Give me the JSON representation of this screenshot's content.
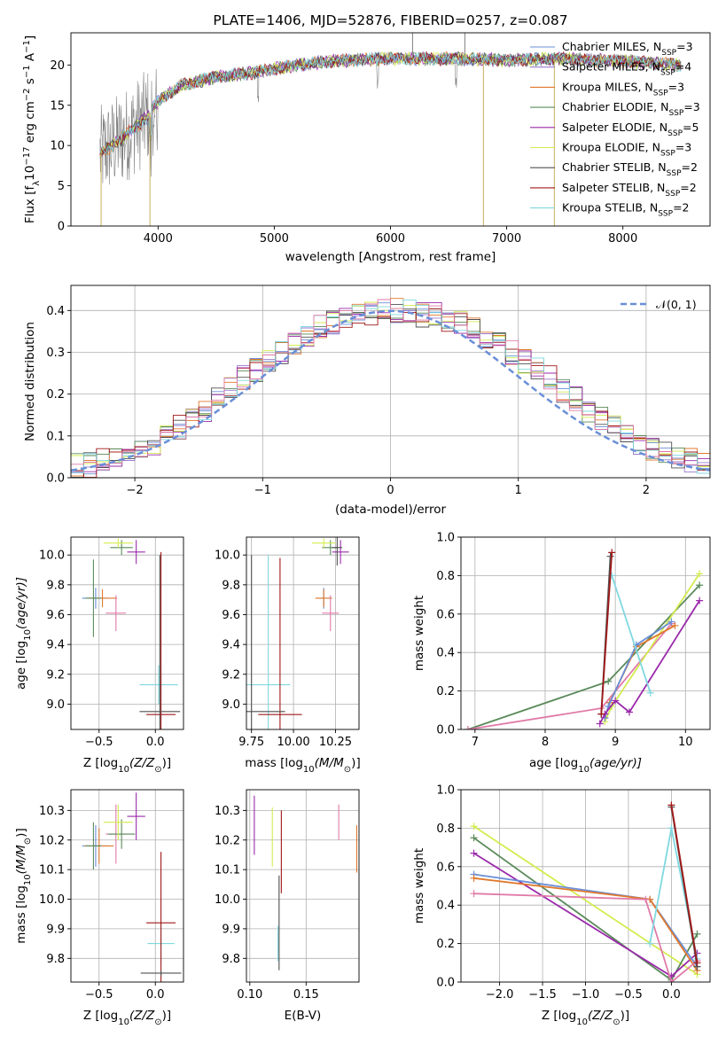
{
  "figure": {
    "title": "PLATE=1406, MJD=52876, FIBERID=0257, z=0.087"
  },
  "colors": {
    "Chabrier MILES": "#6a8fd8",
    "Salpeter MILES": "#9a7bd0",
    "Kroupa MILES": "#e0782c",
    "Chabrier ELODIE": "#5a8a5a",
    "Salpeter ELODIE": "#9a2aaa",
    "Kroupa ELODIE": "#d4ec50",
    "Chabrier STELIB": "#505050",
    "Salpeter STELIB": "#a01818",
    "Kroupa STELIB": "#80d8e0",
    "Salpeter ELODIE pink": "#e07aa8",
    "data": "#808080"
  },
  "chart_data": [
    {
      "id": "spectrum",
      "type": "line",
      "title": "PLATE=1406, MJD=52876, FIBERID=0257, z=0.087",
      "xlabel": "wavelength [Angstrom, rest frame]",
      "ylabel": "Flux [f",
      "ylabel_parts": {
        "lambda": "λ",
        "mult": "10",
        "exp1": "−17",
        "unit": " erg cm",
        "exp2": "−2",
        "s": " s",
        "exp3": "−1",
        "A": " A",
        "exp4": "−1",
        "close": "]"
      },
      "xlim": [
        3250,
        8750
      ],
      "ylim": [
        0,
        24
      ],
      "xticks": [
        4000,
        5000,
        6000,
        7000,
        8000
      ],
      "yticks": [
        0,
        5,
        10,
        15,
        20
      ],
      "grid": false,
      "legend_position": "top-right",
      "legend": [
        {
          "name": "Chabrier MILES, N",
          "sub": "SSP",
          "val": "=3",
          "color": "#6a8fd8"
        },
        {
          "name": "Salpeter MILES, N",
          "sub": "SSP",
          "val": "=4",
          "color": "#9a7bd0"
        },
        {
          "name": "Kroupa MILES, N",
          "sub": "SSP",
          "val": "=3",
          "color": "#e0782c"
        },
        {
          "name": "Chabrier ELODIE, N",
          "sub": "SSP",
          "val": "=3",
          "color": "#5a8a5a"
        },
        {
          "name": "Salpeter ELODIE, N",
          "sub": "SSP",
          "val": "=5",
          "color": "#9a2aaa"
        },
        {
          "name": "Kroupa ELODIE, N",
          "sub": "SSP",
          "val": "=3",
          "color": "#d4ec50"
        },
        {
          "name": "Chabrier STELIB, N",
          "sub": "SSP",
          "val": "=2",
          "color": "#505050"
        },
        {
          "name": "Salpeter STELIB, N",
          "sub": "SSP",
          "val": "=2",
          "color": "#a01818"
        },
        {
          "name": "Kroupa STELIB, N",
          "sub": "SSP",
          "val": "=2",
          "color": "#80d8e0"
        }
      ],
      "continuum": [
        [
          3500,
          9.0
        ],
        [
          3700,
          11.0
        ],
        [
          3900,
          13.5
        ],
        [
          4000,
          15.5
        ],
        [
          4200,
          17.5
        ],
        [
          4500,
          18.5
        ],
        [
          4800,
          19.0
        ],
        [
          5000,
          19.5
        ],
        [
          5200,
          20.0
        ],
        [
          5500,
          20.5
        ],
        [
          6000,
          20.8
        ],
        [
          6500,
          20.8
        ],
        [
          7000,
          20.6
        ],
        [
          7500,
          20.8
        ],
        [
          8000,
          20.5
        ],
        [
          8500,
          20.0
        ]
      ],
      "spikes": [
        [
          3510,
          0
        ],
        [
          3930,
          0
        ],
        [
          6800,
          0
        ],
        [
          7410,
          0
        ],
        [
          6190,
          24
        ],
        [
          6640,
          24
        ]
      ]
    },
    {
      "id": "residuals",
      "type": "area",
      "xlabel": "(data-model)/error",
      "ylabel": "Normed distribution",
      "xlim": [
        -2.5,
        2.5
      ],
      "ylim": [
        0,
        0.46
      ],
      "xticks": [
        -2,
        -1,
        0,
        1,
        2
      ],
      "xtick_labels": [
        "−2",
        "−1",
        "0",
        "1",
        "2"
      ],
      "yticks": [
        0.0,
        0.1,
        0.2,
        0.3,
        0.4
      ],
      "ytick_labels": [
        "0.0",
        "0.1",
        "0.2",
        "0.3",
        "0.4"
      ],
      "grid": true,
      "legend_position": "top-right",
      "legend": [
        {
          "name": "𝒩(0, 1)",
          "color": "#6a8fd8",
          "dashed": true
        }
      ],
      "bin_width": 0.1,
      "x_start": -2.5,
      "base_values": [
        0.03,
        0.03,
        0.04,
        0.05,
        0.06,
        0.07,
        0.08,
        0.1,
        0.12,
        0.14,
        0.16,
        0.19,
        0.21,
        0.24,
        0.26,
        0.28,
        0.3,
        0.32,
        0.34,
        0.36,
        0.37,
        0.38,
        0.39,
        0.39,
        0.4,
        0.4,
        0.4,
        0.39,
        0.39,
        0.38,
        0.37,
        0.36,
        0.34,
        0.32,
        0.3,
        0.28,
        0.26,
        0.24,
        0.21,
        0.19,
        0.16,
        0.14,
        0.12,
        0.1,
        0.08,
        0.07,
        0.06,
        0.05,
        0.04,
        0.03
      ]
    },
    {
      "id": "z-age",
      "type": "scatter",
      "xlabel": "Z [log",
      "xlabel_parts": {
        "sub": "10",
        "rest": "(Z/Z",
        "sun": "⊙",
        "close": ")]"
      },
      "ylabel": "age  [log",
      "ylabel_parts": {
        "sub": "10",
        "rest": "(age/yr)]"
      },
      "xlim": [
        -0.75,
        0.25
      ],
      "ylim": [
        8.83,
        10.12
      ],
      "xticks": [
        -0.5,
        0.0
      ],
      "xtick_labels": [
        "−0.5",
        "0.0"
      ],
      "yticks": [
        9.0,
        9.2,
        9.4,
        9.6,
        9.8,
        10.0
      ],
      "ytick_labels": [
        "9.0",
        "9.2",
        "9.4",
        "9.6",
        "9.8",
        "10.0"
      ],
      "grid": true,
      "points": [
        {
          "x": -0.53,
          "y": 9.71,
          "xe": 0.12,
          "ye": 0.07,
          "c": "#6a8fd8"
        },
        {
          "x": -0.47,
          "y": 9.71,
          "xe": 0.13,
          "ye": 0.06,
          "c": "#e0782c"
        },
        {
          "x": -0.55,
          "y": 9.71,
          "xe": 0.07,
          "ye": 0.26,
          "c": "#5a8a5a"
        },
        {
          "x": -0.35,
          "y": 9.61,
          "xe": 0.09,
          "ye": 0.12,
          "c": "#e07aa8"
        },
        {
          "x": -0.3,
          "y": 10.05,
          "xe": 0.1,
          "ye": 0.05,
          "c": "#5a8a5a"
        },
        {
          "x": -0.33,
          "y": 10.08,
          "xe": 0.13,
          "ye": 0.03,
          "c": "#d4ec50"
        },
        {
          "x": -0.17,
          "y": 10.02,
          "xe": 0.08,
          "ye": 0.08,
          "c": "#9a2aaa"
        },
        {
          "x": 0.03,
          "y": 9.13,
          "xe": 0.17,
          "ye": 0.13,
          "c": "#80d8e0"
        },
        {
          "x": 0.05,
          "y": 8.93,
          "xe": 0.13,
          "ye": 1.09,
          "c": "#a01818"
        },
        {
          "x": 0.04,
          "y": 8.95,
          "xe": 0.18,
          "ye": 1.05,
          "c": "#505050"
        }
      ]
    },
    {
      "id": "mass-age",
      "type": "scatter",
      "xlabel": "mass [log",
      "xlabel_parts": {
        "sub": "10",
        "rest": "(M/M",
        "sun": "⊙",
        "close": ")]"
      },
      "xlim": [
        9.72,
        10.39
      ],
      "ylim": [
        8.83,
        10.12
      ],
      "xticks": [
        9.75,
        10.0,
        10.25
      ],
      "xtick_labels": [
        "9.75",
        "10.00",
        "10.25"
      ],
      "yticks": [
        9.0,
        9.2,
        9.4,
        9.6,
        9.8,
        10.0
      ],
      "ytick_labels": [
        "9.0",
        "9.2",
        "9.4",
        "9.6",
        "9.8",
        "10.0"
      ],
      "grid": true,
      "points": [
        {
          "x": 10.18,
          "y": 9.71,
          "xe": 0.04,
          "ye": 0.07,
          "c": "#6a8fd8"
        },
        {
          "x": 10.18,
          "y": 9.71,
          "xe": 0.05,
          "ye": 0.06,
          "c": "#e0782c"
        },
        {
          "x": 10.22,
          "y": 9.61,
          "xe": 0.05,
          "ye": 0.12,
          "c": "#e07aa8"
        },
        {
          "x": 10.22,
          "y": 10.05,
          "xe": 0.05,
          "ye": 0.05,
          "c": "#5a8a5a"
        },
        {
          "x": 10.18,
          "y": 10.08,
          "xe": 0.07,
          "ye": 0.03,
          "c": "#d4ec50"
        },
        {
          "x": 10.28,
          "y": 10.02,
          "xe": 0.05,
          "ye": 0.08,
          "c": "#9a2aaa"
        },
        {
          "x": 10.26,
          "y": 10.05,
          "xe": 0.03,
          "ye": 0.12,
          "c": "#505050"
        },
        {
          "x": 9.85,
          "y": 9.13,
          "xe": 0.13,
          "ye": 0.87,
          "c": "#80d8e0"
        },
        {
          "x": 9.92,
          "y": 8.93,
          "xe": 0.13,
          "ye": 1.05,
          "c": "#a01818"
        },
        {
          "x": 9.75,
          "y": 8.95,
          "xe": 0.2,
          "ye": 1.05,
          "c": "#505050"
        }
      ]
    },
    {
      "id": "age-weight",
      "type": "line",
      "xlabel": "age  [log",
      "xlabel_parts": {
        "sub": "10",
        "rest": "(age/yr)]"
      },
      "ylabel": "mass weight",
      "xlim": [
        6.8,
        10.35
      ],
      "ylim": [
        0,
        1.0
      ],
      "xticks": [
        7,
        8,
        9,
        10
      ],
      "xtick_labels": [
        "7",
        "8",
        "9",
        "10"
      ],
      "yticks": [
        0.0,
        0.2,
        0.4,
        0.6,
        0.8,
        1.0
      ],
      "ytick_labels": [
        "0.0",
        "0.2",
        "0.4",
        "0.6",
        "0.8",
        "1.0"
      ],
      "grid": true,
      "series": [
        {
          "c": "#5a8a5a",
          "x": [
            6.9,
            8.9,
            10.2
          ],
          "y": [
            0.0,
            0.25,
            0.75
          ]
        },
        {
          "c": "#e07aa8",
          "x": [
            6.9,
            8.8,
            9.8
          ],
          "y": [
            0.0,
            0.11,
            0.55
          ]
        },
        {
          "c": "#d4ec50",
          "x": [
            8.85,
            8.95,
            10.2
          ],
          "y": [
            0.04,
            0.12,
            0.81
          ]
        },
        {
          "c": "#e0782c",
          "x": [
            8.85,
            8.92,
            9.3,
            9.85
          ],
          "y": [
            0.06,
            0.14,
            0.43,
            0.54
          ]
        },
        {
          "c": "#6a8fd8",
          "x": [
            8.85,
            8.9,
            9.3,
            9.8
          ],
          "y": [
            0.06,
            0.12,
            0.44,
            0.56
          ]
        },
        {
          "c": "#9a2aaa",
          "x": [
            8.78,
            8.85,
            9.0,
            9.2,
            10.2
          ],
          "y": [
            0.03,
            0.08,
            0.15,
            0.09,
            0.67
          ]
        },
        {
          "c": "#80d8e0",
          "x": [
            8.95,
            9.5
          ],
          "y": [
            0.8,
            0.19
          ]
        },
        {
          "c": "#505050",
          "x": [
            8.8,
            8.93
          ],
          "y": [
            0.08,
            0.9
          ]
        },
        {
          "c": "#a01818",
          "x": [
            8.8,
            8.95
          ],
          "y": [
            0.08,
            0.92
          ]
        }
      ]
    },
    {
      "id": "z-mass",
      "type": "scatter",
      "xlabel": "Z [log",
      "xlabel_parts": {
        "sub": "10",
        "rest": "(Z/Z",
        "sun": "⊙",
        "close": ")]"
      },
      "ylabel": "mass [log",
      "ylabel_parts": {
        "sub": "10",
        "rest": "(M/M",
        "sun": "⊙",
        "close": ")]"
      },
      "xlim": [
        -0.75,
        0.25
      ],
      "ylim": [
        9.72,
        10.37
      ],
      "xticks": [
        -0.5,
        0.0
      ],
      "xtick_labels": [
        "−0.5",
        "0.0"
      ],
      "yticks": [
        9.8,
        9.9,
        10.0,
        10.1,
        10.2,
        10.3
      ],
      "ytick_labels": [
        "9.8",
        "9.9",
        "10.0",
        "10.1",
        "10.2",
        "10.3"
      ],
      "grid": true,
      "points": [
        {
          "x": -0.53,
          "y": 10.18,
          "xe": 0.12,
          "ye": 0.07,
          "c": "#6a8fd8"
        },
        {
          "x": -0.5,
          "y": 10.18,
          "xe": 0.13,
          "ye": 0.06,
          "c": "#e0782c"
        },
        {
          "x": -0.55,
          "y": 10.18,
          "xe": 0.07,
          "ye": 0.08,
          "c": "#5a8a5a"
        },
        {
          "x": -0.35,
          "y": 10.22,
          "xe": 0.09,
          "ye": 0.1,
          "c": "#e07aa8"
        },
        {
          "x": -0.3,
          "y": 10.22,
          "xe": 0.12,
          "ye": 0.05,
          "c": "#5a8a5a"
        },
        {
          "x": -0.33,
          "y": 10.26,
          "xe": 0.13,
          "ye": 0.06,
          "c": "#d4ec50"
        },
        {
          "x": -0.17,
          "y": 10.28,
          "xe": 0.08,
          "ye": 0.08,
          "c": "#9a2aaa"
        },
        {
          "x": 0.05,
          "y": 9.85,
          "xe": 0.12,
          "ye": 0.07,
          "c": "#80d8e0"
        },
        {
          "x": 0.05,
          "y": 9.92,
          "xe": 0.13,
          "ye": 0.24,
          "c": "#a01818"
        },
        {
          "x": 0.05,
          "y": 9.75,
          "xe": 0.18,
          "ye": 0.01,
          "c": "#505050"
        }
      ]
    },
    {
      "id": "ebv-mass",
      "type": "scatter",
      "xlabel": "E(B-V)",
      "xlim": [
        0.097,
        0.197
      ],
      "ylim": [
        9.72,
        10.37
      ],
      "xticks": [
        0.1,
        0.15
      ],
      "xtick_labels": [
        "0.10",
        "0.15"
      ],
      "yticks": [
        9.8,
        9.9,
        10.0,
        10.1,
        10.2,
        10.3
      ],
      "ytick_labels": [
        "9.8",
        "9.9",
        "10.0",
        "10.1",
        "10.2",
        "10.3"
      ],
      "grid": true,
      "points": [
        {
          "x": 0.104,
          "y": 10.25,
          "xe": 0.0,
          "ye": 0.1,
          "c": "#9a2aaa"
        },
        {
          "x": 0.12,
          "y": 10.21,
          "xe": 0.0,
          "ye": 0.1,
          "c": "#d4ec50"
        },
        {
          "x": 0.125,
          "y": 9.85,
          "xe": 0.0,
          "ye": 0.06,
          "c": "#80d8e0"
        },
        {
          "x": 0.126,
          "y": 9.92,
          "xe": 0.0,
          "ye": 0.16,
          "c": "#505050"
        },
        {
          "x": 0.128,
          "y": 10.16,
          "xe": 0.0,
          "ye": 0.14,
          "c": "#a01818"
        },
        {
          "x": 0.179,
          "y": 10.26,
          "xe": 0.0,
          "ye": 0.06,
          "c": "#e07aa8"
        },
        {
          "x": 0.195,
          "y": 10.17,
          "xe": 0.0,
          "ye": 0.08,
          "c": "#e0782c"
        }
      ]
    },
    {
      "id": "z-weight",
      "type": "line",
      "xlabel": "Z [log",
      "xlabel_parts": {
        "sub": "10",
        "rest": "(Z/Z",
        "sun": "⊙",
        "close": ")]"
      },
      "ylabel": "mass weight",
      "xlim": [
        -2.45,
        0.45
      ],
      "ylim": [
        0,
        1.0
      ],
      "xticks": [
        -2.0,
        -1.5,
        -1.0,
        -0.5,
        0.0
      ],
      "xtick_labels": [
        "−2.0",
        "−1.5",
        "−1.0",
        "−0.5",
        "0.0"
      ],
      "yticks": [
        0.0,
        0.2,
        0.4,
        0.6,
        0.8,
        1.0
      ],
      "ytick_labels": [
        "0.0",
        "0.2",
        "0.4",
        "0.6",
        "0.8",
        "1.0"
      ],
      "grid": true,
      "series": [
        {
          "c": "#d4ec50",
          "x": [
            -2.3,
            0.3
          ],
          "y": [
            0.81,
            0.04
          ]
        },
        {
          "c": "#5a8a5a",
          "x": [
            -2.3,
            0.0,
            0.3
          ],
          "y": [
            0.75,
            0.01,
            0.25
          ]
        },
        {
          "c": "#9a2aaa",
          "x": [
            -2.3,
            0.0,
            0.3
          ],
          "y": [
            0.67,
            0.03,
            0.15
          ]
        },
        {
          "c": "#6a8fd8",
          "x": [
            -2.3,
            -0.25,
            0.3
          ],
          "y": [
            0.56,
            0.43,
            0.08
          ]
        },
        {
          "c": "#e0782c",
          "x": [
            -2.3,
            -0.25,
            0.3
          ],
          "y": [
            0.54,
            0.43,
            0.06
          ]
        },
        {
          "c": "#e07aa8",
          "x": [
            -2.3,
            -0.3,
            0.0,
            0.3
          ],
          "y": [
            0.46,
            0.43,
            0.0,
            0.11
          ]
        },
        {
          "c": "#80d8e0",
          "x": [
            -0.25,
            0.0,
            0.3
          ],
          "y": [
            0.2,
            0.8,
            0.12
          ]
        },
        {
          "c": "#505050",
          "x": [
            0.0,
            0.3
          ],
          "y": [
            0.91,
            0.08
          ]
        },
        {
          "c": "#a01818",
          "x": [
            0.0,
            0.3
          ],
          "y": [
            0.92,
            0.1
          ]
        }
      ]
    }
  ]
}
